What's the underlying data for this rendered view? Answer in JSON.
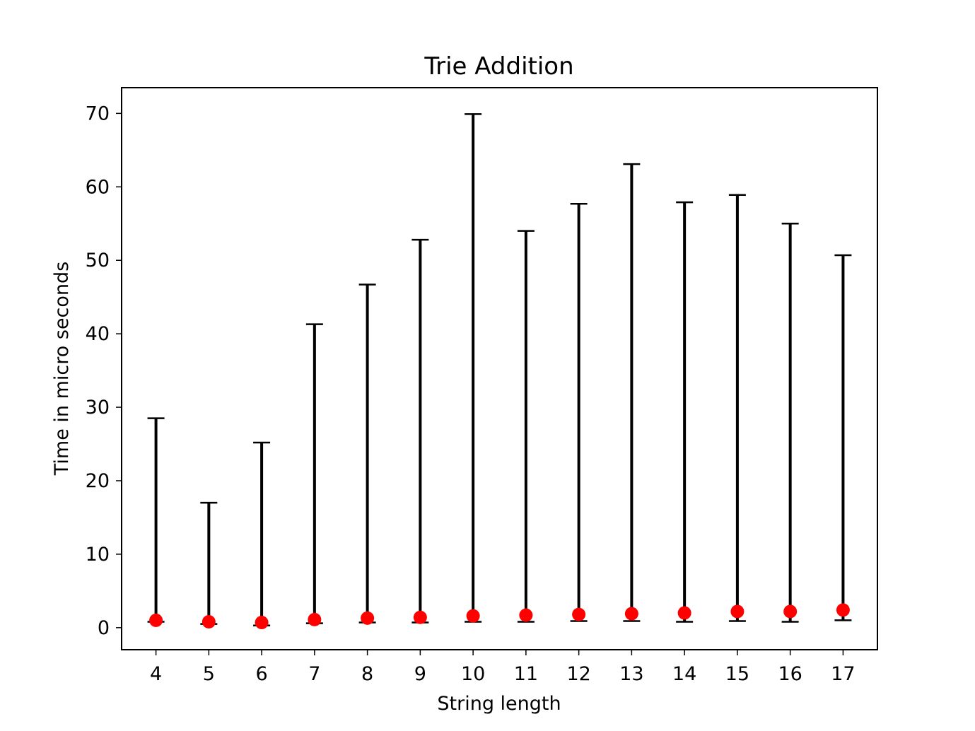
{
  "chart_data": {
    "type": "scatter",
    "title": "Trie Addition",
    "xlabel": "String length",
    "ylabel": "Time in micro seconds",
    "x": [
      4,
      5,
      6,
      7,
      8,
      9,
      10,
      11,
      12,
      13,
      14,
      15,
      16,
      17
    ],
    "x_tick_labels": [
      "4",
      "5",
      "6",
      "7",
      "8",
      "9",
      "10",
      "11",
      "12",
      "13",
      "14",
      "15",
      "16",
      "17"
    ],
    "y": [
      1.0,
      0.8,
      0.7,
      1.1,
      1.3,
      1.4,
      1.6,
      1.7,
      1.8,
      1.9,
      2.0,
      2.2,
      2.2,
      2.4
    ],
    "error_low": [
      0.8,
      0.5,
      0.3,
      0.6,
      0.7,
      0.7,
      0.8,
      0.8,
      0.9,
      0.9,
      0.8,
      0.9,
      0.8,
      1.0
    ],
    "error_high": [
      28.5,
      17.0,
      25.2,
      41.3,
      46.7,
      52.8,
      69.9,
      54.0,
      57.7,
      63.1,
      57.9,
      58.9,
      55.0,
      50.7
    ],
    "ylim": [
      -3,
      73.5
    ],
    "xlim": [
      3.35,
      17.65
    ],
    "y_ticks": [
      0,
      10,
      20,
      30,
      40,
      50,
      60,
      70
    ],
    "y_tick_labels": [
      "0",
      "10",
      "20",
      "30",
      "40",
      "50",
      "60",
      "70"
    ],
    "grid": false,
    "colors": {
      "marker": "#ff0000",
      "errorbar": "#000000",
      "axes": "#000000"
    }
  }
}
